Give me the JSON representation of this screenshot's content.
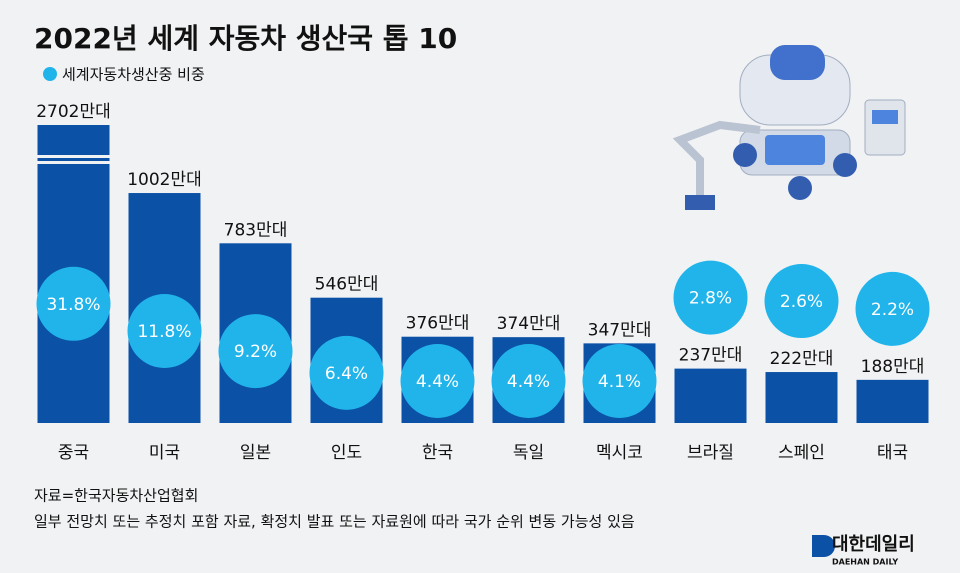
{
  "chart_data": {
    "type": "bar",
    "title": "2022년 세계 자동차 생산국 톱 10",
    "categories": [
      "중국",
      "미국",
      "일본",
      "인도",
      "한국",
      "독일",
      "멕시코",
      "브라질",
      "스페인",
      "태국"
    ],
    "values": [
      2702,
      1002,
      783,
      546,
      376,
      374,
      347,
      237,
      222,
      188
    ],
    "value_labels": [
      "2702만대",
      "1002만대",
      "783만대",
      "546만대",
      "376만대",
      "374만대",
      "347만대",
      "237만대",
      "222만대",
      "188만대"
    ],
    "color": "#0b51a6",
    "share": {
      "name": "세계자동차생산중 비중",
      "color": "#21b4ea",
      "values": [
        31.8,
        11.8,
        9.2,
        6.4,
        4.4,
        4.4,
        4.1,
        2.8,
        2.6,
        2.2
      ],
      "value_labels": [
        "31.8%",
        "11.8%",
        "9.2%",
        "6.4%",
        "4.4%",
        "4.4%",
        "4.1%",
        "2.8%",
        "2.6%",
        "2.2%"
      ]
    },
    "source": "자료=한국자동차산업협회",
    "note": "일부 전망치 또는 추정치 포함 자료, 확정치 발표 또는 자료원에 따라 국가 순위 변동 가능성 있음",
    "logo": {
      "name": "대한데일리",
      "sub": "DAEHAN DAILY"
    }
  }
}
